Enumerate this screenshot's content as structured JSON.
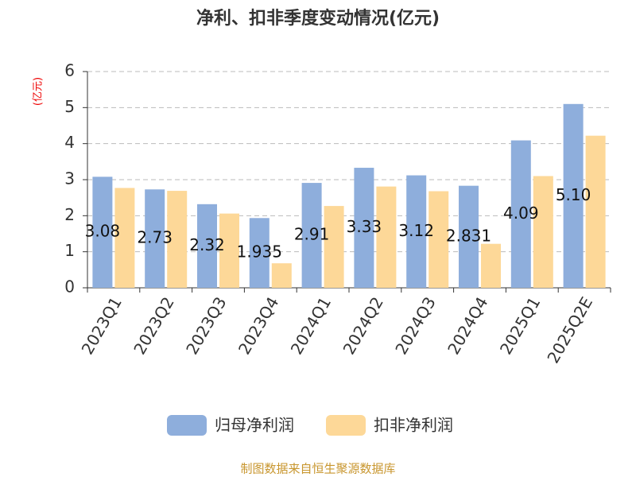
{
  "chart_data": {
    "type": "bar",
    "title": "净利、扣非季度变动情况(亿元)",
    "y_label": "(亿元)",
    "source": "制图数据来自恒生聚源数据库",
    "categories": [
      "2023Q1",
      "2023Q2",
      "2023Q3",
      "2023Q4",
      "2024Q1",
      "2024Q2",
      "2024Q3",
      "2024Q4",
      "2025Q1",
      "2025Q2E"
    ],
    "series": [
      {
        "name": "归母净利润",
        "color": "#8eaedc",
        "values": [
          3.08,
          2.73,
          2.32,
          1.935,
          2.91,
          3.33,
          3.12,
          2.831,
          4.09,
          5.1
        ],
        "value_labels": [
          "3.08",
          "2.73",
          "2.32",
          "1.935",
          "2.91",
          "3.33",
          "3.12",
          "2.831",
          "4.09",
          "5.10"
        ]
      },
      {
        "name": "扣非净利润",
        "color": "#fdd898",
        "values": [
          2.77,
          2.69,
          2.06,
          0.68,
          2.27,
          2.81,
          2.68,
          1.22,
          3.1,
          4.22
        ]
      }
    ],
    "ylim": [
      0,
      6
    ],
    "yticks": [
      0,
      1,
      2,
      3,
      4,
      5,
      6
    ],
    "grid": true,
    "legend": "bottom"
  }
}
